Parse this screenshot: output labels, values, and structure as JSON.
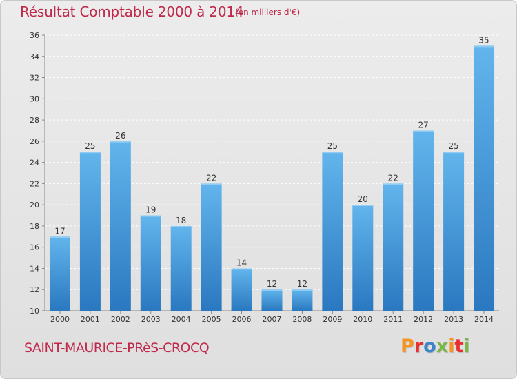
{
  "header": {
    "title": "Résultat Comptable 2000 à 2014",
    "subtitle": "(en milliers d'€)"
  },
  "footer": {
    "commune": "SAINT-MAURICE-PRèS-CROCQ",
    "logo_text": "Proxiti"
  },
  "colors": {
    "title": "#c0294a",
    "bar_light": "#5eb1ea",
    "bar_dark": "#2a78c0",
    "logo_letters": [
      "#f7941d",
      "#e8312f",
      "#3a86c8",
      "#7ab648",
      "#f7941d",
      "#e8312f",
      "#7ab648"
    ]
  },
  "chart_data": {
    "type": "bar",
    "title": "Résultat Comptable 2000 à 2014",
    "subtitle": "(en milliers d'€)",
    "xlabel": "",
    "ylabel": "",
    "categories": [
      "2000",
      "2001",
      "2002",
      "2003",
      "2004",
      "2005",
      "2006",
      "2007",
      "2008",
      "2009",
      "2010",
      "2011",
      "2012",
      "2013",
      "2014"
    ],
    "values": [
      17,
      25,
      26,
      19,
      18,
      22,
      14,
      12,
      12,
      25,
      20,
      22,
      27,
      25,
      35
    ],
    "ylim": [
      10,
      36
    ],
    "yticks": [
      10,
      12,
      14,
      16,
      18,
      20,
      22,
      24,
      26,
      28,
      30,
      32,
      34,
      36
    ],
    "grid": true,
    "data_labels": true
  }
}
